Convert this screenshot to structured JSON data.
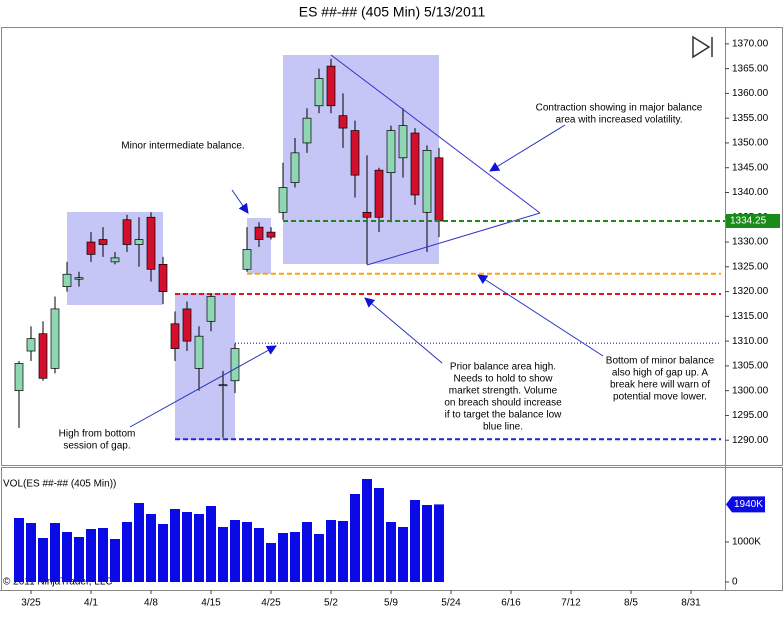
{
  "chart_data": {
    "type": "candlestick",
    "title": "ES ##-## (405 Min)  5/13/2011",
    "categories": [
      null,
      "3/25",
      null,
      null,
      null,
      null,
      "4/1",
      null,
      null,
      null,
      null,
      "4/8",
      null,
      null,
      null,
      null,
      "4/15",
      null,
      null,
      null,
      null,
      "4/25",
      null,
      null,
      null,
      null,
      "5/2",
      null,
      null,
      null,
      null,
      "5/9",
      null,
      null,
      null,
      null,
      "5/24",
      null,
      null,
      null,
      null,
      "6/16",
      null,
      null,
      null,
      null,
      "7/12",
      null,
      null,
      null,
      null,
      "8/5",
      null,
      null,
      null,
      null,
      "8/31"
    ],
    "open": [
      1300,
      1308,
      1311.5,
      1304.5,
      1321,
      1322.5,
      1330,
      1330.5,
      1326,
      1334.5,
      1329.5,
      1335,
      1325.5,
      1313.5,
      1316.5,
      1304.5,
      1314,
      1301,
      1302,
      1324.5,
      1333,
      1332,
      1336,
      1342,
      1350,
      1357.5,
      1365.5,
      1355.5,
      1352.5,
      1336,
      1344.5,
      1344,
      1347,
      1352,
      1336,
      1347,
      null,
      null,
      null,
      null,
      null,
      null,
      null,
      null,
      null,
      null,
      null,
      null,
      null,
      null,
      null,
      null,
      null,
      null,
      null,
      null,
      null
    ],
    "high": [
      1306,
      1313,
      1314,
      1319,
      1326,
      1324,
      1332,
      1333,
      1328,
      1335.5,
      1335,
      1336,
      1327,
      1316,
      1318,
      1313,
      1319.5,
      1304,
      1309.5,
      1333,
      1334,
      1333,
      1346,
      1351,
      1357,
      1365,
      1367,
      1360,
      1354.5,
      1347.5,
      1345,
      1353.5,
      1357,
      1353,
      1349.5,
      1349,
      null,
      null,
      null,
      null,
      null,
      null,
      null,
      null,
      null,
      null,
      null,
      null,
      null,
      null,
      null,
      null,
      null,
      null,
      null,
      null,
      null
    ],
    "low": [
      1292.5,
      1306,
      1302,
      1303.5,
      1320,
      1321,
      1326,
      1327,
      1325.5,
      1328,
      1325,
      1322,
      1317.5,
      1306,
      1308,
      1300,
      1312,
      1290.5,
      1299.5,
      1324,
      1329,
      1330.5,
      1334.5,
      1341,
      1348,
      1356,
      1356,
      1349,
      1339,
      1325.5,
      1332,
      1334,
      1343,
      1337.5,
      1328,
      1331,
      null,
      null,
      null,
      null,
      null,
      null,
      null,
      null,
      null,
      null,
      null,
      null,
      null,
      null,
      null,
      null,
      null,
      null,
      null,
      null,
      null
    ],
    "close": [
      1305.5,
      1310.5,
      1302.5,
      1316.5,
      1323.5,
      1322.8,
      1327.5,
      1329.5,
      1326.8,
      1329.5,
      1330.5,
      1324.5,
      1320,
      1308.5,
      1310,
      1311,
      1319,
      1301.2,
      1308.5,
      1328.5,
      1330.5,
      1331,
      1341,
      1348,
      1355,
      1363,
      1357.5,
      1353,
      1343.5,
      1335,
      1335,
      1352.5,
      1353.5,
      1339.5,
      1348.5,
      1334.25,
      null,
      null,
      null,
      null,
      null,
      null,
      null,
      null,
      null,
      null,
      null,
      null,
      null,
      null,
      null,
      null,
      null,
      null,
      null,
      null,
      null
    ],
    "up_color": "#8fd6b2",
    "down_color": "#d2102e",
    "last_color": "#1a8a1a",
    "ylim": [
      1285,
      1373.4
    ],
    "yticks": [
      {
        "value": 1290,
        "label": "1290.00"
      },
      {
        "value": 1295,
        "label": "1295.00"
      },
      {
        "value": 1300,
        "label": "1300.00"
      },
      {
        "value": 1305,
        "label": "1305.00"
      },
      {
        "value": 1310,
        "label": "1310.00"
      },
      {
        "value": 1315,
        "label": "1315.00"
      },
      {
        "value": 1320,
        "label": "1320.00"
      },
      {
        "value": 1325,
        "label": "1325.00"
      },
      {
        "value": 1330,
        "label": "1330.00"
      },
      {
        "value": 1335,
        "label": "1335.00"
      },
      {
        "value": 1340,
        "label": "1340.00"
      },
      {
        "value": 1345,
        "label": "1345.00"
      },
      {
        "value": 1350,
        "label": "1350.00"
      },
      {
        "value": 1355,
        "label": "1355.00"
      },
      {
        "value": 1360,
        "label": "1360.00"
      },
      {
        "value": 1365,
        "label": "1365.00"
      },
      {
        "value": 1370,
        "label": "1370.00"
      }
    ],
    "levels": [
      {
        "value": 1323.6,
        "color": "#ffa500",
        "style": "dashed"
      },
      {
        "value": 1319.5,
        "color": "#ee1111",
        "style": "dashed"
      },
      {
        "value": 1309.6,
        "color": "#000080",
        "style": "dotted"
      },
      {
        "value": 1290.2,
        "color": "#2222dd",
        "style": "dashed"
      }
    ],
    "annotations": [
      [
        "Minor intermediate balance."
      ],
      [
        "Contraction showing in major balance",
        "area with increased volatility."
      ],
      [
        "Prior balance area high.",
        "Needs to hold to show",
        "market strength. Volume",
        "on breach should increase",
        "if to target the balance low",
        "blue line."
      ],
      [
        "Bottom of minor balance",
        "also high of gap up. A",
        "break here will warn of",
        "potential move lower."
      ],
      [
        "High from bottom",
        "session of gap."
      ]
    ],
    "volume": {
      "label": "VOL(ES ##-## (405 Min))",
      "color": "#0a0ae6",
      "values": [
        1600,
        1475,
        1100,
        1475,
        1250,
        1125,
        1325,
        1350,
        1075,
        1500,
        1975,
        1700,
        1450,
        1825,
        1750,
        1700,
        1900,
        1375,
        1550,
        1500,
        1350,
        975,
        1225,
        1250,
        1500,
        1200,
        1550,
        1525,
        2200,
        2575,
        2350,
        1500,
        1375,
        2050,
        1925,
        1940,
        null,
        null,
        null,
        null,
        null,
        null,
        null,
        null,
        null,
        null,
        null,
        null,
        null,
        null,
        null,
        null,
        null,
        null,
        null,
        null,
        null
      ],
      "value_labels": [
        null,
        null,
        null,
        null,
        null,
        null,
        null,
        null,
        null,
        null,
        null,
        null,
        null,
        null,
        null,
        null,
        null,
        null,
        null,
        null,
        null,
        null,
        null,
        null,
        null,
        null,
        null,
        null,
        null,
        null,
        null,
        null,
        null,
        null,
        null,
        "1940K",
        null,
        null,
        null,
        null,
        null,
        null,
        null,
        null,
        null,
        null,
        null,
        null,
        null,
        null,
        null,
        null,
        null,
        null,
        null,
        null,
        null
      ],
      "ylim": [
        0,
        2800
      ],
      "yticks": [
        0,
        {
          "value": 1000,
          "label": "1000K"
        }
      ]
    },
    "copyright": "© 2011 NinjaTrader, LLC"
  }
}
